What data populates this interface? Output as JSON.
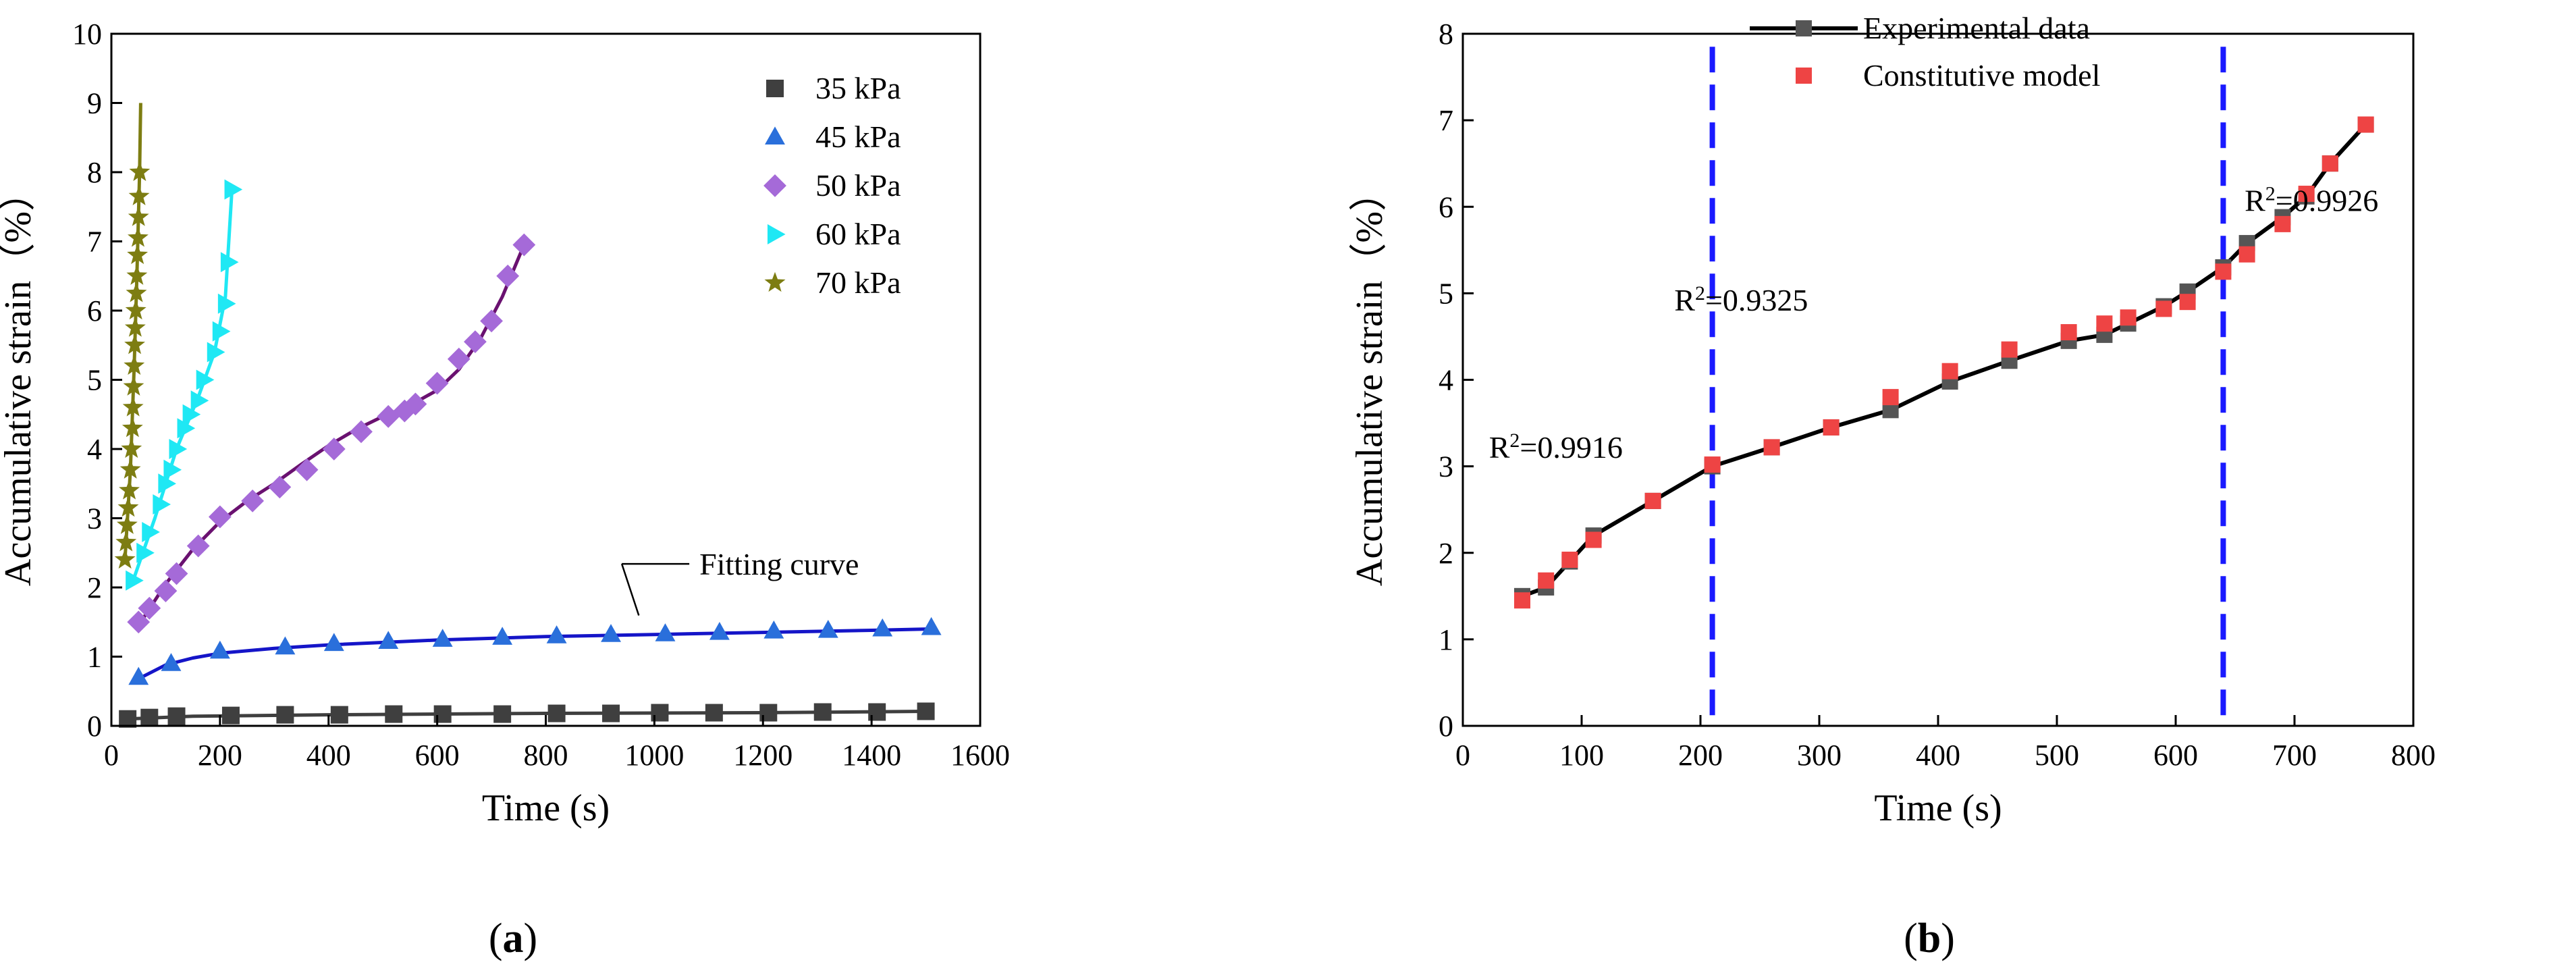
{
  "chart_data": [
    {
      "type": "scatter",
      "panel": "a",
      "xlabel": "Time (s)",
      "ylabel": "Accumulative strain（%）",
      "xlim": [
        0,
        1600
      ],
      "ylim": [
        0,
        10
      ],
      "xticks": [
        0,
        200,
        400,
        600,
        800,
        1000,
        1200,
        1400,
        1600
      ],
      "yticks": [
        0,
        1,
        2,
        3,
        4,
        5,
        6,
        7,
        8,
        9,
        10
      ],
      "legend_position": "top-right",
      "annotation": "Fitting curve",
      "series": [
        {
          "name": "35 kPa",
          "marker": "square",
          "color": "#3f3f3f",
          "fit_color": "#3f3f3f",
          "points": [
            [
              30,
              0.1
            ],
            [
              70,
              0.12
            ],
            [
              120,
              0.14
            ],
            [
              220,
              0.15
            ],
            [
              320,
              0.16
            ],
            [
              420,
              0.16
            ],
            [
              520,
              0.17
            ],
            [
              610,
              0.17
            ],
            [
              720,
              0.17
            ],
            [
              820,
              0.18
            ],
            [
              920,
              0.18
            ],
            [
              1010,
              0.19
            ],
            [
              1110,
              0.19
            ],
            [
              1210,
              0.19
            ],
            [
              1310,
              0.2
            ],
            [
              1410,
              0.2
            ],
            [
              1500,
              0.21
            ]
          ],
          "fit": [
            [
              30,
              0.1
            ],
            [
              150,
              0.14
            ],
            [
              400,
              0.16
            ],
            [
              800,
              0.18
            ],
            [
              1200,
              0.19
            ],
            [
              1500,
              0.21
            ]
          ]
        },
        {
          "name": "45 kPa",
          "marker": "triangle-up",
          "color": "#2a6fdb",
          "fit_color": "#1515c8",
          "points": [
            [
              50,
              0.7
            ],
            [
              110,
              0.9
            ],
            [
              200,
              1.08
            ],
            [
              320,
              1.14
            ],
            [
              410,
              1.19
            ],
            [
              510,
              1.22
            ],
            [
              610,
              1.25
            ],
            [
              720,
              1.28
            ],
            [
              820,
              1.3
            ],
            [
              920,
              1.32
            ],
            [
              1020,
              1.33
            ],
            [
              1120,
              1.35
            ],
            [
              1220,
              1.37
            ],
            [
              1320,
              1.38
            ],
            [
              1420,
              1.4
            ],
            [
              1510,
              1.42
            ]
          ],
          "fit": [
            [
              50,
              0.68
            ],
            [
              100,
              0.88
            ],
            [
              150,
              0.98
            ],
            [
              200,
              1.05
            ],
            [
              300,
              1.12
            ],
            [
              400,
              1.17
            ],
            [
              600,
              1.24
            ],
            [
              800,
              1.29
            ],
            [
              1000,
              1.32
            ],
            [
              1200,
              1.35
            ],
            [
              1400,
              1.38
            ],
            [
              1510,
              1.4
            ]
          ]
        },
        {
          "name": "50 kPa",
          "marker": "diamond",
          "color": "#a56ad8",
          "fit_color": "#6a1170",
          "points": [
            [
              50,
              1.5
            ],
            [
              70,
              1.7
            ],
            [
              100,
              1.95
            ],
            [
              120,
              2.2
            ],
            [
              160,
              2.6
            ],
            [
              200,
              3.02
            ],
            [
              260,
              3.25
            ],
            [
              310,
              3.45
            ],
            [
              360,
              3.7
            ],
            [
              410,
              4.0
            ],
            [
              460,
              4.25
            ],
            [
              510,
              4.47
            ],
            [
              540,
              4.55
            ],
            [
              560,
              4.65
            ],
            [
              600,
              4.95
            ],
            [
              640,
              5.3
            ],
            [
              670,
              5.55
            ],
            [
              700,
              5.85
            ],
            [
              730,
              6.5
            ],
            [
              760,
              6.95
            ]
          ],
          "fit": [
            [
              50,
              1.45
            ],
            [
              100,
              2.05
            ],
            [
              150,
              2.55
            ],
            [
              200,
              2.95
            ],
            [
              250,
              3.25
            ],
            [
              300,
              3.5
            ],
            [
              350,
              3.78
            ],
            [
              400,
              4.05
            ],
            [
              450,
              4.28
            ],
            [
              500,
              4.47
            ],
            [
              550,
              4.63
            ],
            [
              600,
              4.85
            ],
            [
              640,
              5.15
            ],
            [
              680,
              5.6
            ],
            [
              720,
              6.2
            ],
            [
              760,
              6.95
            ]
          ]
        },
        {
          "name": "60 kPa",
          "marker": "triangle-right",
          "color": "#1fe8f4",
          "fit_color": "#1fe8f4",
          "points": [
            [
              40,
              2.1
            ],
            [
              60,
              2.5
            ],
            [
              70,
              2.8
            ],
            [
              90,
              3.2
            ],
            [
              100,
              3.5
            ],
            [
              110,
              3.7
            ],
            [
              120,
              4.0
            ],
            [
              135,
              4.3
            ],
            [
              145,
              4.5
            ],
            [
              160,
              4.7
            ],
            [
              170,
              5.0
            ],
            [
              190,
              5.4
            ],
            [
              200,
              5.7
            ],
            [
              210,
              6.1
            ],
            [
              215,
              6.7
            ],
            [
              222,
              7.75
            ]
          ],
          "fit": [
            [
              40,
              2.1
            ],
            [
              80,
              3.0
            ],
            [
              120,
              4.0
            ],
            [
              160,
              4.75
            ],
            [
              190,
              5.4
            ],
            [
              210,
              6.2
            ],
            [
              222,
              7.75
            ]
          ]
        },
        {
          "name": "70 kPa",
          "marker": "star",
          "color": "#7d7d12",
          "fit_color": "#7d7d12",
          "points": [
            [
              25,
              2.4
            ],
            [
              27,
              2.65
            ],
            [
              29,
              2.9
            ],
            [
              31,
              3.15
            ],
            [
              33,
              3.4
            ],
            [
              35,
              3.7
            ],
            [
              37,
              4.0
            ],
            [
              39,
              4.3
            ],
            [
              40,
              4.6
            ],
            [
              41,
              4.9
            ],
            [
              42,
              5.2
            ],
            [
              43,
              5.5
            ],
            [
              44,
              5.75
            ],
            [
              45,
              6.0
            ],
            [
              46,
              6.25
            ],
            [
              47,
              6.5
            ],
            [
              48,
              6.8
            ],
            [
              49,
              7.05
            ],
            [
              50,
              7.35
            ],
            [
              51,
              7.65
            ],
            [
              52,
              8.0
            ]
          ],
          "fit": [
            [
              25,
              2.4
            ],
            [
              35,
              3.7
            ],
            [
              42,
              5.2
            ],
            [
              47,
              6.5
            ],
            [
              50,
              7.4
            ],
            [
              52,
              8.0
            ],
            [
              54,
              9.0
            ]
          ]
        }
      ]
    },
    {
      "type": "line",
      "panel": "b",
      "xlabel": "Time (s)",
      "ylabel": "Accumulative strain（%）",
      "xlim": [
        0,
        800
      ],
      "ylim": [
        0,
        8
      ],
      "xticks": [
        0,
        100,
        200,
        300,
        400,
        500,
        600,
        700,
        800
      ],
      "yticks": [
        0,
        1,
        2,
        3,
        4,
        5,
        6,
        7,
        8
      ],
      "legend_position": "top",
      "vlines": [
        210,
        640
      ],
      "series": [
        {
          "name": "Experimental data",
          "marker": "square",
          "color": "#555555",
          "line_color": "#000000",
          "points": [
            [
              50,
              1.5
            ],
            [
              70,
              1.6
            ],
            [
              90,
              1.9
            ],
            [
              110,
              2.2
            ],
            [
              160,
              2.6
            ],
            [
              210,
              3.0
            ],
            [
              260,
              3.22
            ],
            [
              310,
              3.45
            ],
            [
              360,
              3.65
            ],
            [
              410,
              3.98
            ],
            [
              460,
              4.22
            ],
            [
              510,
              4.45
            ],
            [
              540,
              4.52
            ],
            [
              560,
              4.65
            ],
            [
              590,
              4.85
            ],
            [
              610,
              5.02
            ],
            [
              640,
              5.3
            ],
            [
              660,
              5.58
            ],
            [
              690,
              5.88
            ],
            [
              710,
              6.12
            ],
            [
              730,
              6.5
            ],
            [
              760,
              6.95
            ]
          ]
        },
        {
          "name": "Constitutive model",
          "marker": "square",
          "color": "#ee4444",
          "points": [
            [
              50,
              1.45
            ],
            [
              70,
              1.68
            ],
            [
              90,
              1.92
            ],
            [
              110,
              2.15
            ],
            [
              160,
              2.6
            ],
            [
              210,
              3.02
            ],
            [
              260,
              3.22
            ],
            [
              310,
              3.45
            ],
            [
              360,
              3.8
            ],
            [
              410,
              4.1
            ],
            [
              460,
              4.35
            ],
            [
              510,
              4.55
            ],
            [
              540,
              4.65
            ],
            [
              560,
              4.72
            ],
            [
              590,
              4.82
            ],
            [
              610,
              4.9
            ],
            [
              640,
              5.25
            ],
            [
              660,
              5.45
            ],
            [
              690,
              5.8
            ],
            [
              710,
              6.15
            ],
            [
              730,
              6.5
            ],
            [
              760,
              6.95
            ]
          ]
        }
      ],
      "annotations": [
        {
          "r2": "R",
          "sup": "2",
          "value": "=0.9916"
        },
        {
          "r2": "R",
          "sup": "2",
          "value": "=0.9325"
        },
        {
          "r2": "R",
          "sup": "2",
          "value": "=0.9926"
        }
      ]
    }
  ],
  "panel_labels": {
    "a": {
      "open": "(",
      "letter": "a",
      "close": ")"
    },
    "b": {
      "open": "(",
      "letter": "b",
      "close": ")"
    }
  }
}
